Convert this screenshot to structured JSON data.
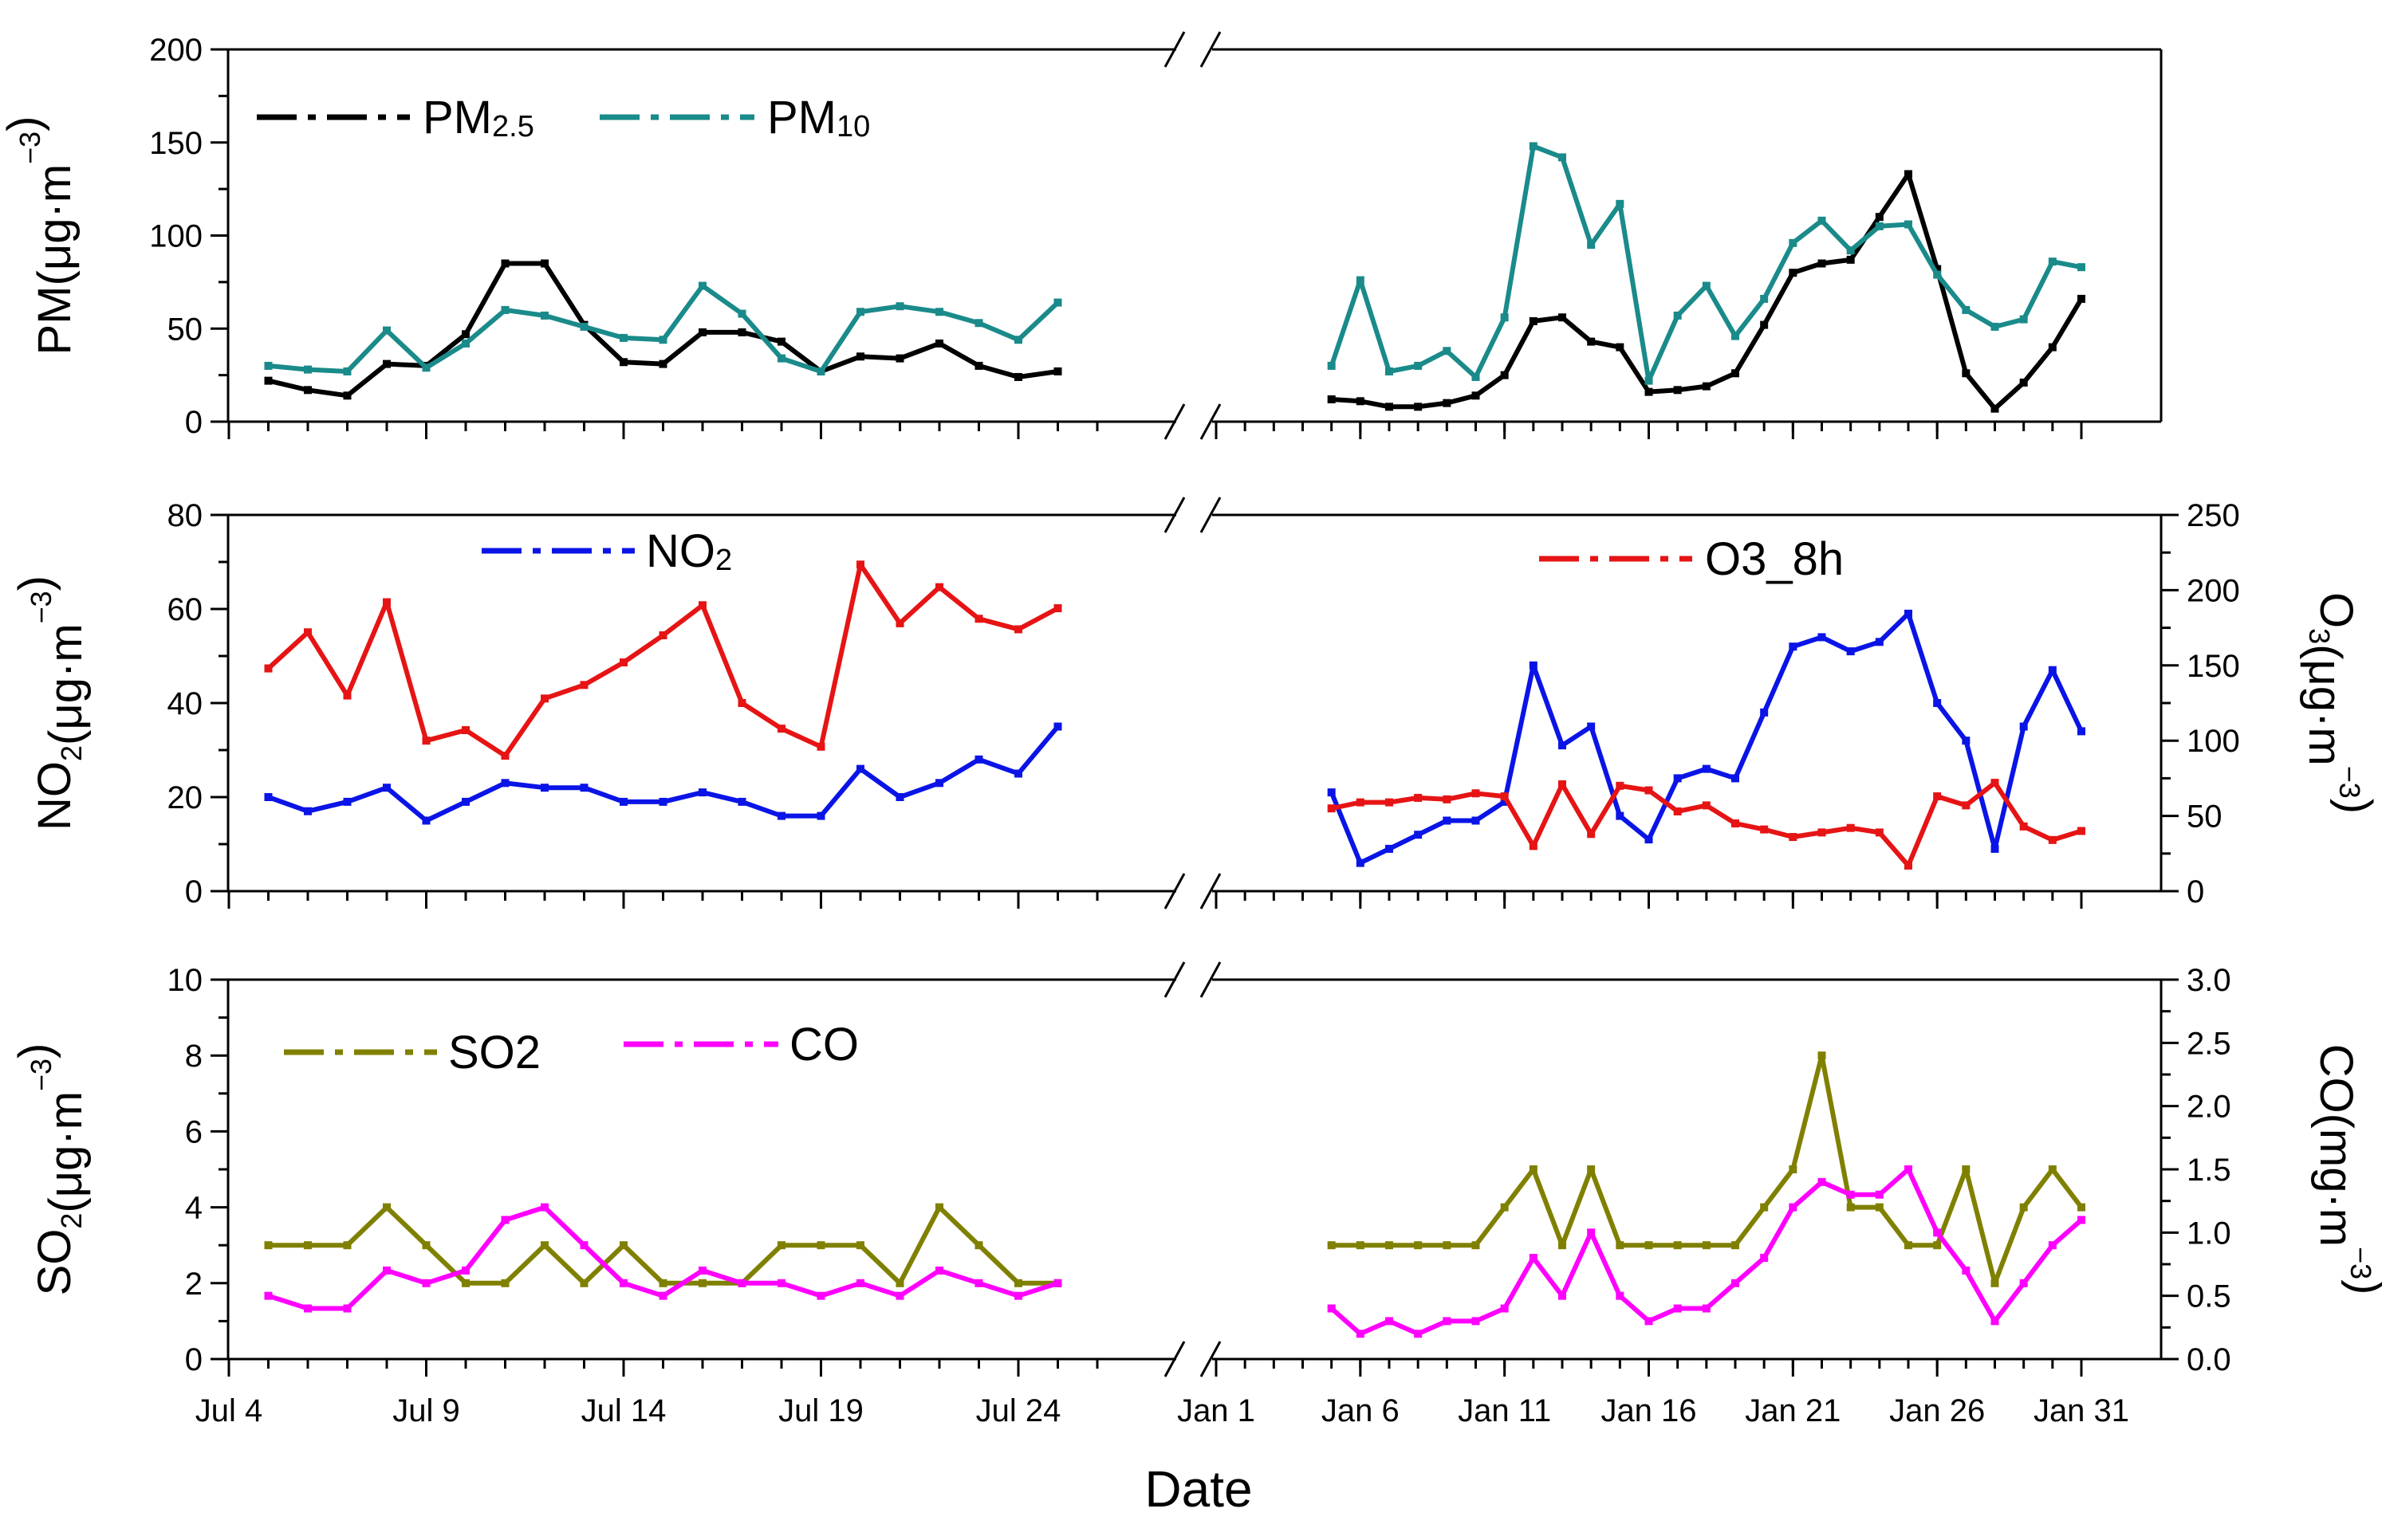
{
  "chart_data": {
    "type": "line",
    "xlabel": "Date",
    "x_tick_labels": [
      "Jul 4",
      "Jul 9",
      "Jul 14",
      "Jul 19",
      "Jul 24",
      "Jan 1",
      "Jan 6",
      "Jan 11",
      "Jan 16",
      "Jan 21",
      "Jan 26",
      "Jan 31"
    ],
    "x_break": "//",
    "periods": [
      {
        "start": "Jul 4",
        "end": "Jul 25"
      },
      {
        "start": "Jan 1",
        "end": "Jan 31"
      }
    ],
    "panels": [
      {
        "id": "pm",
        "ylabel_left": {
          "base": "PM(μg·m",
          "sup": "−3",
          "tail": ")"
        },
        "ylim_left": [
          0,
          200
        ],
        "yticks_left": [
          "0",
          "50",
          "100",
          "150",
          "200"
        ],
        "series": [
          {
            "name": {
              "base": "PM",
              "sub": "2.5"
            },
            "color": "#000000",
            "axis": "left",
            "summer": [
              22,
              17,
              14,
              31,
              30,
              47,
              85,
              85,
              52,
              32,
              31,
              48,
              48,
              43,
              27,
              35,
              34,
              42,
              30,
              24,
              27
            ],
            "winter": [
              12,
              11,
              8,
              8,
              10,
              14,
              25,
              54,
              56,
              43,
              40,
              16,
              17,
              19,
              26,
              52,
              80,
              85,
              87,
              110,
              133,
              82,
              26,
              7,
              21,
              40,
              66
            ]
          },
          {
            "name": {
              "base": "PM",
              "sub": "10"
            },
            "color": "#1a8a8a",
            "axis": "left",
            "summer": [
              30,
              28,
              27,
              49,
              29,
              42,
              60,
              57,
              51,
              45,
              44,
              73,
              58,
              34,
              27,
              59,
              62,
              59,
              53,
              44,
              64
            ],
            "winter": [
              30,
              76,
              27,
              30,
              38,
              24,
              56,
              148,
              142,
              95,
              117,
              22,
              57,
              73,
              46,
              66,
              96,
              108,
              92,
              105,
              106,
              79,
              60,
              51,
              55,
              86,
              83
            ]
          }
        ]
      },
      {
        "id": "no2_o3",
        "ylabel_left": {
          "base": "NO",
          "sub": "2",
          "mid": "(μg·m",
          "sup": "−3",
          "tail": ")"
        },
        "ylabel_right": {
          "base": "O",
          "sub": "3",
          "mid": "(μg·m",
          "sup": "−3",
          "tail": ")"
        },
        "ylim_left": [
          0,
          80
        ],
        "yticks_left": [
          "0",
          "20",
          "40",
          "60",
          "80"
        ],
        "ylim_right": [
          0,
          250
        ],
        "yticks_right": [
          "0",
          "50",
          "100",
          "150",
          "200",
          "250"
        ],
        "series": [
          {
            "name": {
              "base": "NO",
              "sub": "2"
            },
            "color": "#0a14e6",
            "axis": "left",
            "summer": [
              20,
              17,
              19,
              22,
              15,
              19,
              23,
              22,
              22,
              19,
              19,
              21,
              19,
              16,
              16,
              26,
              20,
              23,
              28,
              25,
              35
            ],
            "winter": [
              21,
              6,
              9,
              12,
              15,
              15,
              19,
              48,
              31,
              35,
              16,
              11,
              24,
              26,
              24,
              38,
              52,
              54,
              51,
              53,
              59,
              40,
              32,
              9,
              35,
              47,
              34
            ]
          },
          {
            "name": {
              "base": "O3_8h",
              "sub": ""
            },
            "color": "#e61414",
            "axis": "right",
            "summer": [
              148,
              172,
              130,
              192,
              100,
              107,
              90,
              128,
              137,
              152,
              170,
              190,
              125,
              108,
              96,
              217,
              178,
              202,
              181,
              174,
              188
            ],
            "winter": [
              55,
              59,
              59,
              62,
              61,
              65,
              63,
              30,
              71,
              38,
              70,
              67,
              53,
              57,
              45,
              41,
              36,
              39,
              42,
              39,
              17,
              63,
              57,
              72,
              43,
              34,
              40
            ]
          }
        ]
      },
      {
        "id": "so2_co",
        "ylabel_left": {
          "base": "SO",
          "sub": "2",
          "mid": "(μg·m",
          "sup": "−3",
          "tail": ")"
        },
        "ylabel_right": {
          "base": "CO(mg·m",
          "sub": "",
          "mid": "",
          "sup": "−3",
          "tail": ")"
        },
        "ylim_left": [
          0,
          10
        ],
        "yticks_left": [
          "0",
          "2",
          "4",
          "6",
          "8",
          "10"
        ],
        "ylim_right": [
          0,
          3
        ],
        "yticks_right": [
          "0.0",
          "0.5",
          "1.0",
          "1.5",
          "2.0",
          "2.5",
          "3.0"
        ],
        "series": [
          {
            "name": {
              "base": "SO2",
              "sub": ""
            },
            "color": "#808000",
            "axis": "left",
            "summer": [
              3,
              3,
              3,
              4,
              3,
              2,
              2,
              3,
              2,
              3,
              2,
              2,
              2,
              3,
              3,
              3,
              2,
              4,
              3,
              2,
              2
            ],
            "winter": [
              3,
              3,
              3,
              3,
              3,
              3,
              4,
              5,
              3,
              5,
              3,
              3,
              3,
              3,
              3,
              4,
              5,
              8,
              4,
              4,
              3,
              3,
              5,
              2,
              4,
              5,
              4
            ]
          },
          {
            "name": {
              "base": "CO",
              "sub": ""
            },
            "color": "#ff00ff",
            "axis": "right",
            "summer": [
              0.5,
              0.4,
              0.4,
              0.7,
              0.6,
              0.7,
              1.1,
              1.2,
              0.9,
              0.6,
              0.5,
              0.7,
              0.6,
              0.6,
              0.5,
              0.6,
              0.5,
              0.7,
              0.6,
              0.5,
              0.6
            ],
            "winter": [
              0.4,
              0.2,
              0.3,
              0.2,
              0.3,
              0.3,
              0.4,
              0.8,
              0.5,
              1.0,
              0.5,
              0.3,
              0.4,
              0.4,
              0.6,
              0.8,
              1.2,
              1.4,
              1.3,
              1.3,
              1.5,
              1.0,
              0.7,
              0.3,
              0.6,
              0.9,
              1.1
            ]
          }
        ]
      }
    ]
  }
}
